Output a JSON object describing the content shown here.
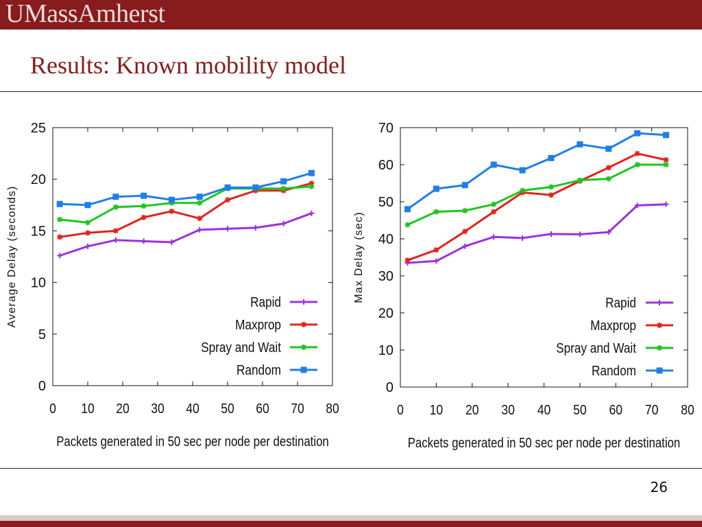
{
  "header": {
    "logo_text": "UMassAmherst",
    "title": "Results: Known mobility model"
  },
  "footer": {
    "page_number": "26"
  },
  "colors": {
    "banner": "#881c1c",
    "Rapid": "#9b30e0",
    "Maxprop": "#e3221b",
    "Spray and Wait": "#1ec51e",
    "Random": "#1f7fe6"
  },
  "chart_data": [
    {
      "type": "line",
      "xlabel": "Packets generated in 50 sec per node per destination",
      "ylabel": "Average Delay (seconds)",
      "xlim": [
        0,
        80
      ],
      "ylim": [
        0,
        25
      ],
      "xticks": [
        0,
        10,
        20,
        30,
        40,
        50,
        60,
        70,
        80
      ],
      "yticks": [
        0,
        5,
        10,
        15,
        20,
        25
      ],
      "grid": false,
      "legend": "bottom-right",
      "series": [
        {
          "name": "Rapid",
          "marker": "plus",
          "x": [
            2,
            10,
            18,
            26,
            34,
            42,
            50,
            58,
            66,
            74
          ],
          "y": [
            12.6,
            13.5,
            14.1,
            14.0,
            13.9,
            15.1,
            15.2,
            15.3,
            15.7,
            16.7
          ]
        },
        {
          "name": "Maxprop",
          "marker": "star",
          "x": [
            2,
            10,
            18,
            26,
            34,
            42,
            50,
            58,
            66,
            74
          ],
          "y": [
            14.4,
            14.8,
            15.0,
            16.3,
            16.9,
            16.2,
            18.0,
            18.9,
            18.9,
            19.6
          ]
        },
        {
          "name": "Spray and Wait",
          "marker": "star",
          "x": [
            2,
            10,
            18,
            26,
            34,
            42,
            50,
            58,
            66,
            74
          ],
          "y": [
            16.1,
            15.8,
            17.3,
            17.4,
            17.7,
            17.7,
            19.1,
            19.1,
            19.1,
            19.3
          ]
        },
        {
          "name": "Random",
          "marker": "square",
          "x": [
            2,
            10,
            18,
            26,
            34,
            42,
            50,
            58,
            66,
            74
          ],
          "y": [
            17.6,
            17.5,
            18.3,
            18.4,
            18.0,
            18.3,
            19.2,
            19.2,
            19.8,
            20.6
          ]
        }
      ]
    },
    {
      "type": "line",
      "xlabel": "Packets generated in 50 sec per node per destination",
      "ylabel": "Max Delay (sec)",
      "xlim": [
        0,
        80
      ],
      "ylim": [
        0,
        70
      ],
      "xticks": [
        0,
        10,
        20,
        30,
        40,
        50,
        60,
        70,
        80
      ],
      "yticks": [
        0,
        10,
        20,
        30,
        40,
        50,
        60,
        70
      ],
      "grid": false,
      "legend": "bottom-right",
      "series": [
        {
          "name": "Rapid",
          "marker": "plus",
          "x": [
            2,
            10,
            18,
            26,
            34,
            42,
            50,
            58,
            66,
            74
          ],
          "y": [
            33.5,
            34.0,
            38.0,
            40.5,
            40.2,
            41.3,
            41.2,
            41.8,
            49.0,
            49.3
          ]
        },
        {
          "name": "Maxprop",
          "marker": "star",
          "x": [
            2,
            10,
            18,
            26,
            34,
            42,
            50,
            58,
            66,
            74
          ],
          "y": [
            34.2,
            37.0,
            42.0,
            47.3,
            52.5,
            51.8,
            55.6,
            59.2,
            63.0,
            61.3
          ]
        },
        {
          "name": "Spray and Wait",
          "marker": "star",
          "x": [
            2,
            10,
            18,
            26,
            34,
            42,
            50,
            58,
            66,
            74
          ],
          "y": [
            43.8,
            47.3,
            47.6,
            49.3,
            53.0,
            54.0,
            55.8,
            56.2,
            60.0,
            60.0
          ]
        },
        {
          "name": "Random",
          "marker": "square",
          "x": [
            2,
            10,
            18,
            26,
            34,
            42,
            50,
            58,
            66,
            74
          ],
          "y": [
            48.0,
            53.5,
            54.5,
            60.0,
            58.5,
            61.8,
            65.5,
            64.3,
            68.5,
            68.0
          ]
        }
      ]
    }
  ]
}
